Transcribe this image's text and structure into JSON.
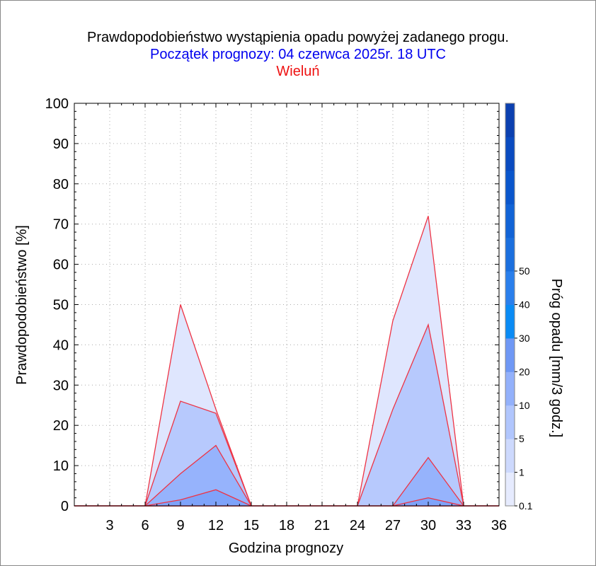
{
  "header": {
    "title": "Prawdopodobieństwo wystąpienia opadu powyżej zadanego progu.",
    "subtitle": "Początek prognozy: 04 czerwca 2025r. 18 UTC",
    "station": "Wieluń"
  },
  "chart_data": {
    "type": "area",
    "title": "Prawdopodobieństwo wystąpienia opadu powyżej zadanego progu.",
    "xlabel": "Godzina prognozy",
    "ylabel": "Prawdopodobieństwo [%]",
    "xlim": [
      0,
      36
    ],
    "ylim": [
      0,
      100
    ],
    "xticks": [
      3,
      6,
      9,
      12,
      15,
      18,
      21,
      24,
      27,
      30,
      33,
      36
    ],
    "yticks": [
      0,
      10,
      20,
      30,
      40,
      50,
      60,
      70,
      80,
      90,
      100
    ],
    "grid": true,
    "x": [
      0,
      3,
      6,
      9,
      12,
      15,
      18,
      21,
      24,
      27,
      30,
      33,
      36
    ],
    "series": [
      {
        "name": "0.1",
        "color": "#dfe6fe",
        "values": [
          0,
          0,
          0,
          50,
          24,
          0,
          0,
          0,
          0,
          46,
          72,
          0,
          0
        ]
      },
      {
        "name": "1",
        "color": "#b7c9fd",
        "values": [
          0,
          0,
          0,
          26,
          23,
          0,
          0,
          0,
          0,
          24,
          45,
          0,
          0
        ]
      },
      {
        "name": "5",
        "color": "#96b3fc",
        "values": [
          0,
          0,
          0,
          8,
          15,
          0,
          0,
          0,
          0,
          0,
          12,
          0,
          0
        ]
      },
      {
        "name": "10",
        "color": "#7ea3fa",
        "values": [
          0,
          0,
          0,
          1.5,
          4,
          0,
          0,
          0,
          0,
          0,
          2,
          0,
          0
        ]
      }
    ],
    "colorbar": {
      "label": "Próg opadu [mm/3 godz.]",
      "tick_labels": [
        "0.1",
        "1",
        "5",
        "10",
        "20",
        "30",
        "40",
        "50"
      ],
      "colors": [
        "#e6ebfe",
        "#cdd9fd",
        "#b1c6fd",
        "#93b1fb",
        "#6f98f5",
        "#0a8bf5",
        "#2a7fec",
        "#1b6fde",
        "#1163d6",
        "#0a56cc",
        "#0a4bc0",
        "#0b40b0"
      ]
    }
  }
}
